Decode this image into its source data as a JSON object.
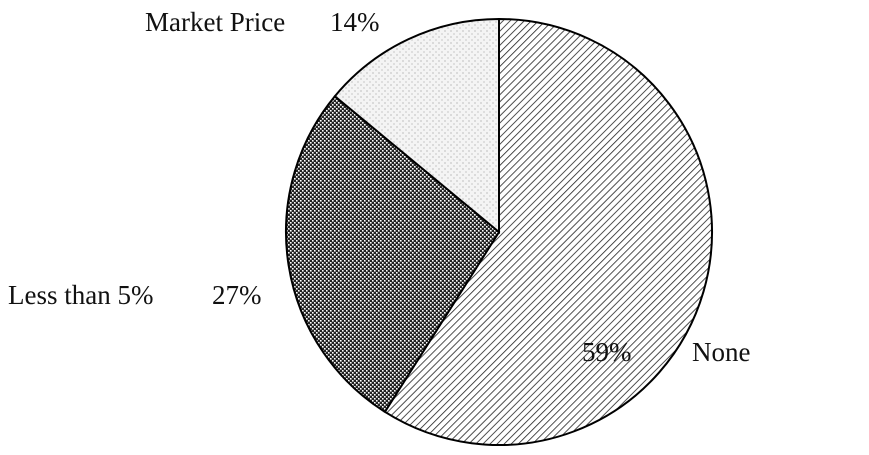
{
  "chart_data": {
    "type": "pie",
    "categories": [
      "None",
      "Less than 5%",
      "Market Price"
    ],
    "values": [
      59,
      27,
      14
    ],
    "value_labels": [
      "59%",
      "27%",
      "14%"
    ],
    "patterns": [
      "hatch",
      "dots",
      "stipple"
    ]
  }
}
